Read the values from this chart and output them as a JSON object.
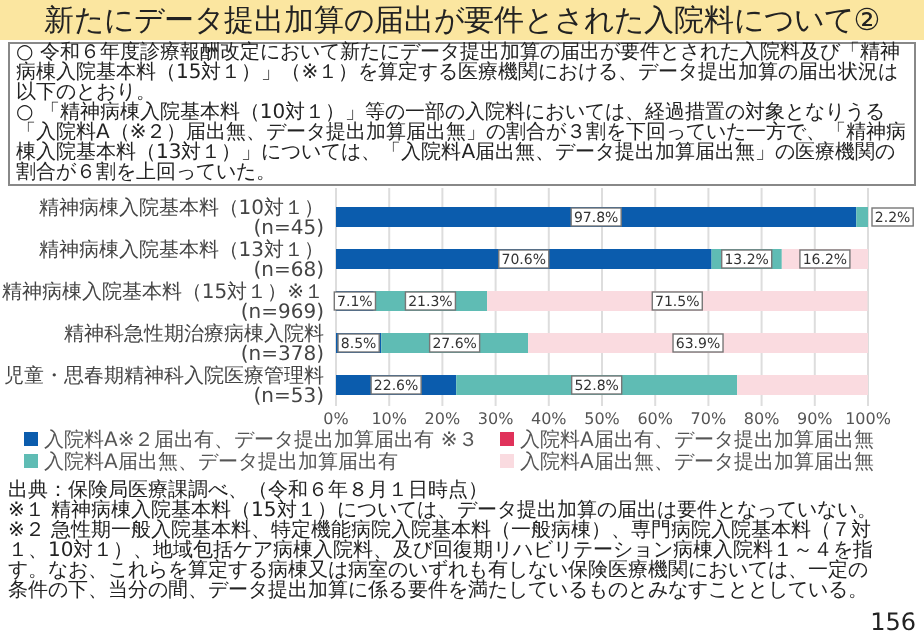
{
  "chart_data": {
    "type": "bar",
    "orientation": "horizontal",
    "stacked": true,
    "title": "新たにデータ提出加算の届出が要件とされた入院料について②",
    "annotations": [
      "○ 令和６年度診療報酬改定において新たにデータ提出加算の届出が要件とされた入院料及び「精神病棟入院基本料（15対１）」（※１）を算定する医療機関における、データ提出加算の届出状況は以下のとおり。",
      "○ 「精神病棟入院基本料（10対１）」等の一部の入院料においては、経過措置の対象となりうる「入院料A（※２）届出無、データ提出加算届出無」の割合が３割を下回っていた一方で、「精神病棟入院基本料（13対１）」については、「入院料A届出無、データ提出加算届出無」の医療機関の割合が６割を上回っていた。",
      "出典：保険局医療課調べ、（令和６年８月１日時点）",
      "※１ 精神病棟入院基本料（15対１）については、データ提出加算の届出は要件となっていない。",
      "※２ 急性期一般入院基本料、特定機能病院入院基本料（一般病棟）、専門病院入院基本料（７対１、10対１）、地域包括ケア病棟入院料、及び回復期リハビリテーション病棟入院料１～４を指す。なお、これらを算定する病棟又は病室のいずれも有しない保険医療機関においては、一定の条件の下、当分の間、データ提出加算に係る要件を満たしているものとみなすこととしている。",
      "156"
    ],
    "categories": [
      "精神病棟入院基本料（10対１）\n(n=45)",
      "精神病棟入院基本料（13対１）\n(n=68)",
      "精神病棟入院基本料（15対１）※１\n(n=969)",
      "精神科急性期治療病棟入院料\n(n=378)",
      "児童・思春期精神科入院医療管理料\n(n=53)"
    ],
    "series": [
      {
        "name": "入院料A※２届出有、データ提出加算届出有 ※３",
        "color": "#0b5cad",
        "values": [
          97.8,
          70.6,
          7.1,
          8.5,
          22.6
        ],
        "value_labels": [
          "97.8%",
          "70.6%",
          "7.1%",
          "8.5%",
          "22.6%"
        ]
      },
      {
        "name": "入院料A届出有、データ提出加算届出無",
        "color": "#e0325a",
        "values": [
          null,
          null,
          null,
          null,
          null
        ]
      },
      {
        "name": "入院料A届出無、データ提出加算届出有",
        "color": "#5fbcb4",
        "values": [
          2.2,
          13.2,
          21.3,
          27.6,
          52.8
        ],
        "value_labels": [
          "2.2%",
          "13.2%",
          "21.3%",
          "27.6%",
          "52.8%"
        ]
      },
      {
        "name": "入院料A届出無、データ提出加算届出無",
        "color": "#fadbe0",
        "values": [
          null,
          16.2,
          71.5,
          63.9,
          24.6
        ],
        "value_labels": [
          null,
          "16.2%",
          "71.5%",
          "63.9%",
          null
        ]
      }
    ],
    "xlim": [
      0,
      100
    ],
    "xticks": [
      {
        "value": 0,
        "label": "0%"
      },
      {
        "value": 10,
        "label": "10%"
      },
      {
        "value": 20,
        "label": "20%"
      },
      {
        "value": 30,
        "label": "30%"
      },
      {
        "value": 40,
        "label": "40%"
      },
      {
        "value": 50,
        "label": "50%"
      },
      {
        "value": 60,
        "label": "60%"
      },
      {
        "value": 70,
        "label": "70%"
      },
      {
        "value": 80,
        "label": "80%"
      },
      {
        "value": 90,
        "label": "90%"
      },
      {
        "value": 100,
        "label": "100%"
      }
    ],
    "grid": "x",
    "legend": "bottom"
  }
}
